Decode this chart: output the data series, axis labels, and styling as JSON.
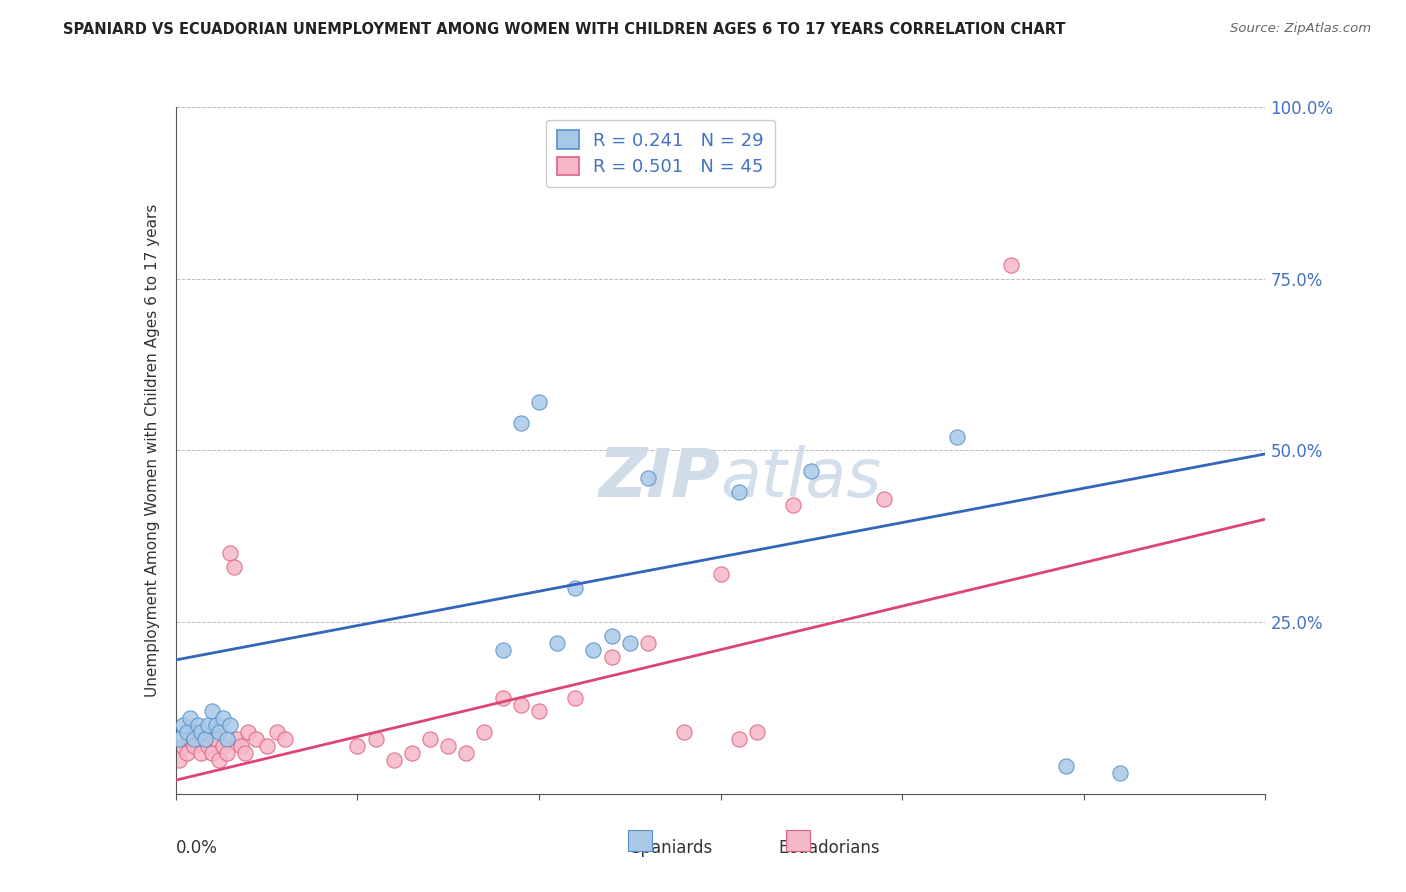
{
  "title": "SPANIARD VS ECUADORIAN UNEMPLOYMENT AMONG WOMEN WITH CHILDREN AGES 6 TO 17 YEARS CORRELATION CHART",
  "source": "Source: ZipAtlas.com",
  "ylabel": "Unemployment Among Women with Children Ages 6 to 17 years",
  "xlim": [
    0.0,
    0.3
  ],
  "ylim": [
    0.0,
    1.0
  ],
  "yticks": [
    0.0,
    0.25,
    0.5,
    0.75,
    1.0
  ],
  "ytick_labels": [
    "",
    "25.0%",
    "50.0%",
    "75.0%",
    "100.0%"
  ],
  "xticks": [
    0.0,
    0.05,
    0.1,
    0.15,
    0.2,
    0.25,
    0.3
  ],
  "blue_color": "#a8c8e8",
  "pink_color": "#f5b8c8",
  "blue_edge_color": "#5590c8",
  "pink_edge_color": "#e06080",
  "blue_line_color": "#3366bb",
  "pink_line_color": "#dd4477",
  "watermark_color": "#d0dce8",
  "spaniards_x": [
    0.001,
    0.002,
    0.003,
    0.004,
    0.005,
    0.006,
    0.007,
    0.008,
    0.009,
    0.01,
    0.011,
    0.012,
    0.013,
    0.014,
    0.015,
    0.09,
    0.095,
    0.1,
    0.105,
    0.11,
    0.115,
    0.12,
    0.125,
    0.13,
    0.155,
    0.175,
    0.215,
    0.245,
    0.26
  ],
  "spaniards_y": [
    0.08,
    0.1,
    0.09,
    0.11,
    0.08,
    0.1,
    0.09,
    0.08,
    0.1,
    0.12,
    0.1,
    0.09,
    0.11,
    0.08,
    0.1,
    0.21,
    0.54,
    0.57,
    0.22,
    0.3,
    0.21,
    0.23,
    0.22,
    0.46,
    0.44,
    0.47,
    0.52,
    0.04,
    0.03
  ],
  "ecuadorians_x": [
    0.001,
    0.002,
    0.003,
    0.004,
    0.005,
    0.006,
    0.007,
    0.008,
    0.009,
    0.01,
    0.011,
    0.012,
    0.013,
    0.014,
    0.015,
    0.016,
    0.017,
    0.018,
    0.019,
    0.02,
    0.022,
    0.025,
    0.028,
    0.03,
    0.05,
    0.055,
    0.06,
    0.065,
    0.07,
    0.075,
    0.08,
    0.085,
    0.09,
    0.095,
    0.1,
    0.11,
    0.12,
    0.13,
    0.14,
    0.15,
    0.155,
    0.16,
    0.17,
    0.195,
    0.23
  ],
  "ecuadorians_y": [
    0.05,
    0.07,
    0.06,
    0.08,
    0.07,
    0.09,
    0.06,
    0.08,
    0.07,
    0.06,
    0.08,
    0.05,
    0.07,
    0.06,
    0.35,
    0.33,
    0.08,
    0.07,
    0.06,
    0.09,
    0.08,
    0.07,
    0.09,
    0.08,
    0.07,
    0.08,
    0.05,
    0.06,
    0.08,
    0.07,
    0.06,
    0.09,
    0.14,
    0.13,
    0.12,
    0.14,
    0.2,
    0.22,
    0.09,
    0.32,
    0.08,
    0.09,
    0.42,
    0.43,
    0.77
  ],
  "blue_line_x0": 0.0,
  "blue_line_y0": 0.195,
  "blue_line_x1": 0.3,
  "blue_line_y1": 0.495,
  "pink_line_x0": 0.0,
  "pink_line_y0": 0.02,
  "pink_line_x1": 0.3,
  "pink_line_y1": 0.4
}
